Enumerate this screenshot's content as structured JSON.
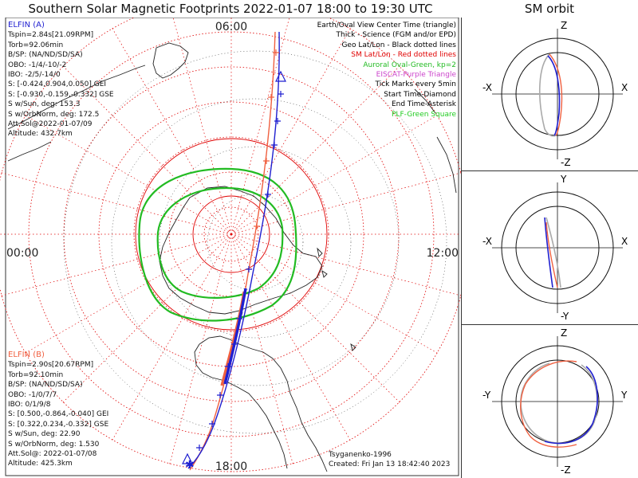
{
  "title": "Southern Solar Magnetic Footprints 2022-01-07 18:00 to 19:30 UTC",
  "orbit_title": "SM orbit",
  "mlt": {
    "top": "06:00",
    "left": "00:00",
    "right": "12:00",
    "bottom": "18:00"
  },
  "elfin_a": {
    "name": "ELFIN (A)",
    "lines": [
      "Tspin=2.84s[21.09RPM]",
      "Torb=92.06min",
      "B/SP: (NA/ND/SD/SA)",
      "OBO: -1/4/-10/-2",
      "IBO: -2/5/-14/0",
      "S: [-0.424,0.904,0.050] GEI",
      "S: [-0.930,-0.159,-0.332] GSE",
      "S w/Sun, deg: 153.3",
      "S w/OrbNorm, deg: 172.5",
      "Att.Sol@2022-01-07/09",
      "Altitude: 432.7km"
    ]
  },
  "elfin_b": {
    "name": "ELFIN (B)",
    "lines": [
      "Tspin=2.90s[20.67RPM]",
      "Torb=92.10min",
      "B/SP: (NA/ND/SD/SA)",
      "OBO: -1/0/7/7",
      "IBO: 0/1/9/8",
      "S: [0.500,-0.864,-0.040] GEI",
      "S: [0.322,0.234,-0.332] GSE",
      "S w/Sun, deg: 22.90",
      "S w/OrbNorm, deg: 1.530",
      "Att.Sol@: 2022-01-07/08",
      "Altitude: 425.3km"
    ]
  },
  "legend": [
    {
      "text": "Earth/Oval View Center Time (triangle)",
      "color": "#000000"
    },
    {
      "text": "Thick - Science (FGM and/or EPD)",
      "color": "#000000"
    },
    {
      "text": "Geo Lat/Lon - Black dotted lines",
      "color": "#000000"
    },
    {
      "text": "SM Lat/Lon - Red dotted lines",
      "color": "#e00000"
    },
    {
      "text": "Auroral Oval-Green, kp=2",
      "color": "#22bb22"
    },
    {
      "text": "EISCAT-Purple Triangle",
      "color": "#cc44cc"
    },
    {
      "text": "Tick Marks every 5min",
      "color": "#000000"
    },
    {
      "text": "Start Time-Diamond",
      "color": "#000000"
    },
    {
      "text": "End Time-Asterisk",
      "color": "#000000"
    },
    {
      "text": "PLF-Green Square",
      "color": "#22cc22"
    }
  ],
  "footer": {
    "model": "Tsyganenko-1996",
    "created": "Created: Fri Jan 13 18:42:40 2023"
  },
  "orbit_panels": [
    {
      "top": "Z",
      "bottom": "-Z",
      "left": "-X",
      "right": "X"
    },
    {
      "top": "Y",
      "bottom": "-Y",
      "left": "-X",
      "right": "X"
    },
    {
      "top": "Z",
      "bottom": "-Z",
      "left": "-Y",
      "right": "Y"
    }
  ],
  "colors": {
    "elfin_a": "#1f1fd0",
    "elfin_b": "#f06040",
    "sm_grid": "#e00000",
    "geo_grid": "#000000",
    "oval": "#22bb22",
    "orbit_gray": "#aaaaaa"
  }
}
